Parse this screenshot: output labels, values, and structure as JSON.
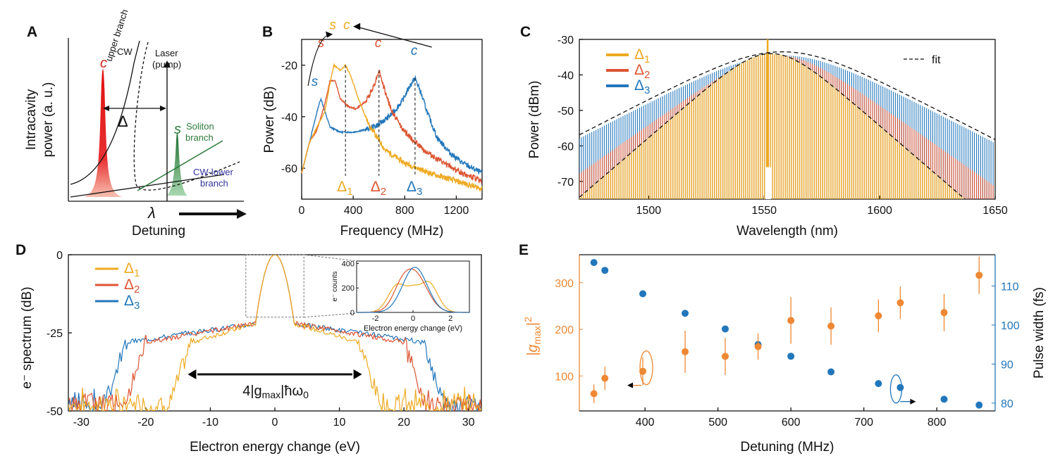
{
  "colors": {
    "orange": "#eeaa22",
    "red": "#dd5533",
    "blue": "#2277bb",
    "green": "#2a7a3a",
    "navy": "#333399",
    "gorange": "#ee8833",
    "gblue": "#2277bb"
  },
  "panelA": {
    "label": "A",
    "ylabel_line1": "Intracavity",
    "ylabel_line2": "power (a. u.)",
    "c_label": "c",
    "s_label": "s",
    "cw": "CW",
    "upper_branch": "upper branch",
    "laser": "Laser",
    "pump": "(pump)",
    "delta": "Δ",
    "soliton": "Soliton",
    "soliton_branch": "branch",
    "cw_lower": "CW-lower",
    "cw_lower_branch": "branch",
    "lambda": "λ",
    "xlabel": "Detuning"
  },
  "chart_data": [
    {
      "panel": "B",
      "type": "line",
      "xlabel": "Frequency (MHz)",
      "ylabel": "Power (dB)",
      "xlim": [
        0,
        1400
      ],
      "ylim": [
        -72,
        -10
      ],
      "xticks": [
        "0",
        "400",
        "800",
        "1200"
      ],
      "yticks": [
        "-20",
        "-40",
        "-60"
      ],
      "annotations": {
        "s": "s",
        "c": "c",
        "d1": "Δ",
        "d2": "Δ",
        "d3": "Δ",
        "sub1": "1",
        "sub2": "2",
        "sub3": "3"
      },
      "series": [
        {
          "name": "Δ1",
          "color": "orange",
          "x": [
            0,
            60,
            120,
            180,
            220,
            250,
            300,
            340,
            380,
            440,
            520,
            650,
            800,
            1000,
            1200,
            1400
          ],
          "y": [
            -62,
            -50,
            -44,
            -38,
            -27,
            -20,
            -22,
            -20,
            -24,
            -33,
            -43,
            -53,
            -58,
            -62,
            -65,
            -68
          ]
        },
        {
          "name": "Δ2",
          "color": "red",
          "x": [
            0,
            60,
            120,
            180,
            220,
            260,
            300,
            360,
            420,
            500,
            560,
            600,
            640,
            700,
            800,
            950,
            1100,
            1250,
            1400
          ],
          "y": [
            -62,
            -50,
            -45,
            -35,
            -26,
            -26,
            -33,
            -36,
            -37,
            -34,
            -28,
            -22,
            -29,
            -38,
            -46,
            -53,
            -58,
            -62,
            -65
          ]
        },
        {
          "name": "Δ3",
          "color": "blue",
          "x": [
            0,
            60,
            100,
            130,
            150,
            180,
            220,
            300,
            400,
            500,
            600,
            700,
            780,
            840,
            880,
            920,
            980,
            1050,
            1150,
            1250,
            1400
          ],
          "y": [
            -62,
            -50,
            -42,
            -36,
            -33,
            -38,
            -44,
            -46,
            -46,
            -45,
            -43,
            -39,
            -34,
            -28,
            -25,
            -30,
            -39,
            -48,
            -54,
            -58,
            -62
          ]
        }
      ]
    },
    {
      "panel": "C",
      "type": "line",
      "xlabel": "Wavelength (nm)",
      "ylabel": "Power (dBm)",
      "xlim": [
        1470,
        1650
      ],
      "ylim": [
        -75,
        -30
      ],
      "xticks": [
        "1500",
        "1550",
        "1600",
        "1650"
      ],
      "yticks": [
        "-30",
        "-40",
        "-50",
        "-60",
        "-70"
      ],
      "legend": [
        "Δ1",
        "Δ2",
        "Δ3"
      ],
      "legend_sub": [
        "1",
        "2",
        "3"
      ],
      "legend_base": "Δ",
      "fit_label": "fit",
      "series": [
        {
          "name": "Δ1",
          "color": "orange",
          "center": 1553,
          "sech_width_nm": 15.5,
          "peak": -34
        },
        {
          "name": "Δ2",
          "color": "red",
          "center": 1556,
          "sech_width_nm": 19,
          "peak": -34
        },
        {
          "name": "Δ3",
          "color": "blue",
          "center": 1558,
          "sech_width_nm": 26,
          "peak": -34
        }
      ]
    },
    {
      "panel": "D",
      "type": "line",
      "xlabel": "Electron energy change (eV)",
      "ylabel": "e⁻ spectrum (dB)",
      "xlim": [
        -32,
        32
      ],
      "ylim": [
        -50,
        0
      ],
      "xticks": [
        "-30",
        "-20",
        "-10",
        "0",
        "10",
        "20",
        "30"
      ],
      "yticks": [
        "0",
        "-25",
        "-50"
      ],
      "legend": [
        "Δ1",
        "Δ2",
        "Δ3"
      ],
      "legend_sub": [
        "1",
        "2",
        "3"
      ],
      "legend_base": "Δ",
      "arrow_label": "4|gmax|ħω0",
      "arrow_label_parts": [
        "4|g",
        "max",
        "|ħω",
        "0"
      ],
      "edges": {
        "Δ1": 13,
        "Δ2": 20,
        "Δ3": 23
      },
      "inset": {
        "xlabel": "Electron energy change (eV)",
        "ylabel": "e⁻ counts",
        "xticks": [
          "-2",
          "0",
          "2"
        ],
        "yticks": [
          "0",
          "200",
          "400"
        ],
        "xlim": [
          -3,
          3
        ],
        "ylim": [
          0,
          420
        ]
      }
    },
    {
      "panel": "E",
      "type": "scatter",
      "xlabel": "Detuning (MHz)",
      "ylabel_left": "|gmax|²",
      "ylabel_left_parts": [
        "|g",
        "max",
        "|",
        "2"
      ],
      "ylabel_right": "Pulse width  (fs)",
      "xlim": [
        310,
        880
      ],
      "ylim_left": [
        25,
        360
      ],
      "ylim_right": [
        78,
        118
      ],
      "xticks": [
        "400",
        "500",
        "600",
        "700",
        "800"
      ],
      "yticks_left": [
        "100",
        "200",
        "300"
      ],
      "yticks_right": [
        "80",
        "90",
        "100",
        "110"
      ],
      "g2": {
        "x": [
          330,
          345,
          397,
          455,
          510,
          555,
          600,
          655,
          720,
          750,
          810,
          858
        ],
        "y": [
          62,
          95,
          110,
          152,
          142,
          163,
          219,
          207,
          229,
          257,
          236,
          316
        ],
        "err": [
          20,
          25,
          30,
          45,
          40,
          28,
          50,
          40,
          35,
          35,
          40,
          40
        ]
      },
      "pulse": {
        "x": [
          330,
          345,
          397,
          455,
          510,
          555,
          600,
          655,
          720,
          750,
          810,
          858
        ],
        "y": [
          116,
          114,
          108,
          103,
          99,
          95,
          92,
          88,
          85,
          84,
          81,
          79.5
        ]
      }
    }
  ]
}
